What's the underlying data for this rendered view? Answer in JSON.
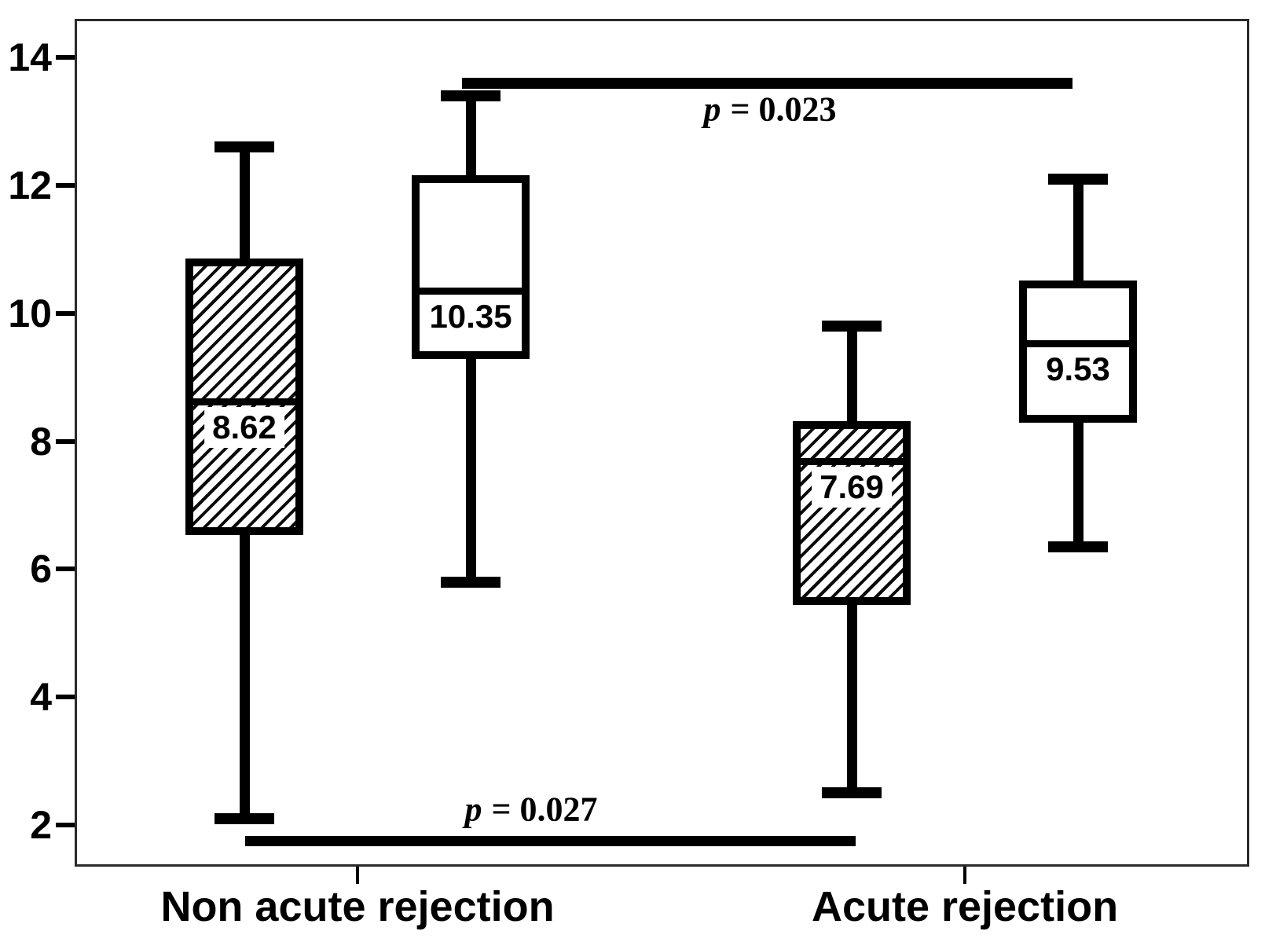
{
  "figure": {
    "background": "#ffffff",
    "ink_color": "#000000",
    "border_color": "#2a2a2a"
  },
  "chart_data": {
    "type": "boxplot",
    "title": "",
    "xlabel": "",
    "ylabel": "",
    "grid": false,
    "legend": null,
    "y_axis": {
      "ticks": [
        14,
        12,
        10,
        8,
        6,
        4,
        2
      ],
      "tick_labels": [
        "14",
        "12",
        "10",
        "8",
        "6",
        "4",
        "2"
      ],
      "range": [
        1.35,
        14.6
      ]
    },
    "groups": [
      {
        "label": "Non acute rejection",
        "boxes": [
          {
            "style": "hatched",
            "min": 2.1,
            "q1": 6.6,
            "median": 8.62,
            "q3": 10.8,
            "max": 12.6,
            "median_label": "8.62"
          },
          {
            "style": "white",
            "min": 5.8,
            "q1": 9.35,
            "median": 10.35,
            "q3": 12.1,
            "max": 13.4,
            "median_label": "10.35"
          }
        ]
      },
      {
        "label": "Acute rejection",
        "boxes": [
          {
            "style": "hatched",
            "min": 2.5,
            "q1": 5.5,
            "median": 7.69,
            "q3": 8.25,
            "max": 9.8,
            "median_label": "7.69"
          },
          {
            "style": "white",
            "min": 6.35,
            "q1": 8.35,
            "median": 9.53,
            "q3": 10.45,
            "max": 12.1,
            "median_label": "9.53"
          }
        ]
      }
    ],
    "significance": [
      {
        "p_symbol": "p",
        "p_value": "= 0.023",
        "text": "p = 0.023",
        "connects": "white boxes of both groups",
        "bar_value": 13.6
      },
      {
        "p_symbol": "p",
        "p_value": "= 0.027",
        "text": "p = 0.027",
        "connects": "hatched boxes of both groups",
        "bar_value": 1.75
      }
    ]
  }
}
